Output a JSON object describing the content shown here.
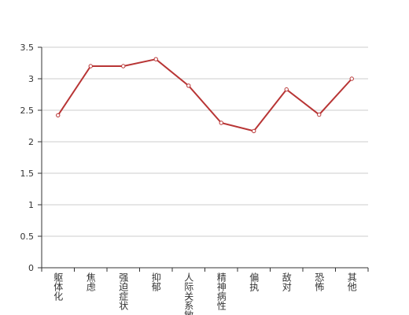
{
  "chart_data": {
    "type": "line",
    "categories": [
      "躯体化",
      "焦虑",
      "强迫症状",
      "抑郁",
      "人际关系敏感",
      "精神病性",
      "偏执",
      "敌对",
      "恐怖",
      "其他"
    ],
    "values": [
      2.42,
      3.2,
      3.2,
      3.31,
      2.89,
      2.3,
      2.17,
      2.83,
      2.43,
      3.0
    ],
    "color": "#b83535",
    "ylim": [
      0,
      3.5
    ],
    "yticks": [
      0,
      0.5,
      1,
      1.5,
      2,
      2.5,
      3,
      3.5
    ],
    "grid": true
  }
}
